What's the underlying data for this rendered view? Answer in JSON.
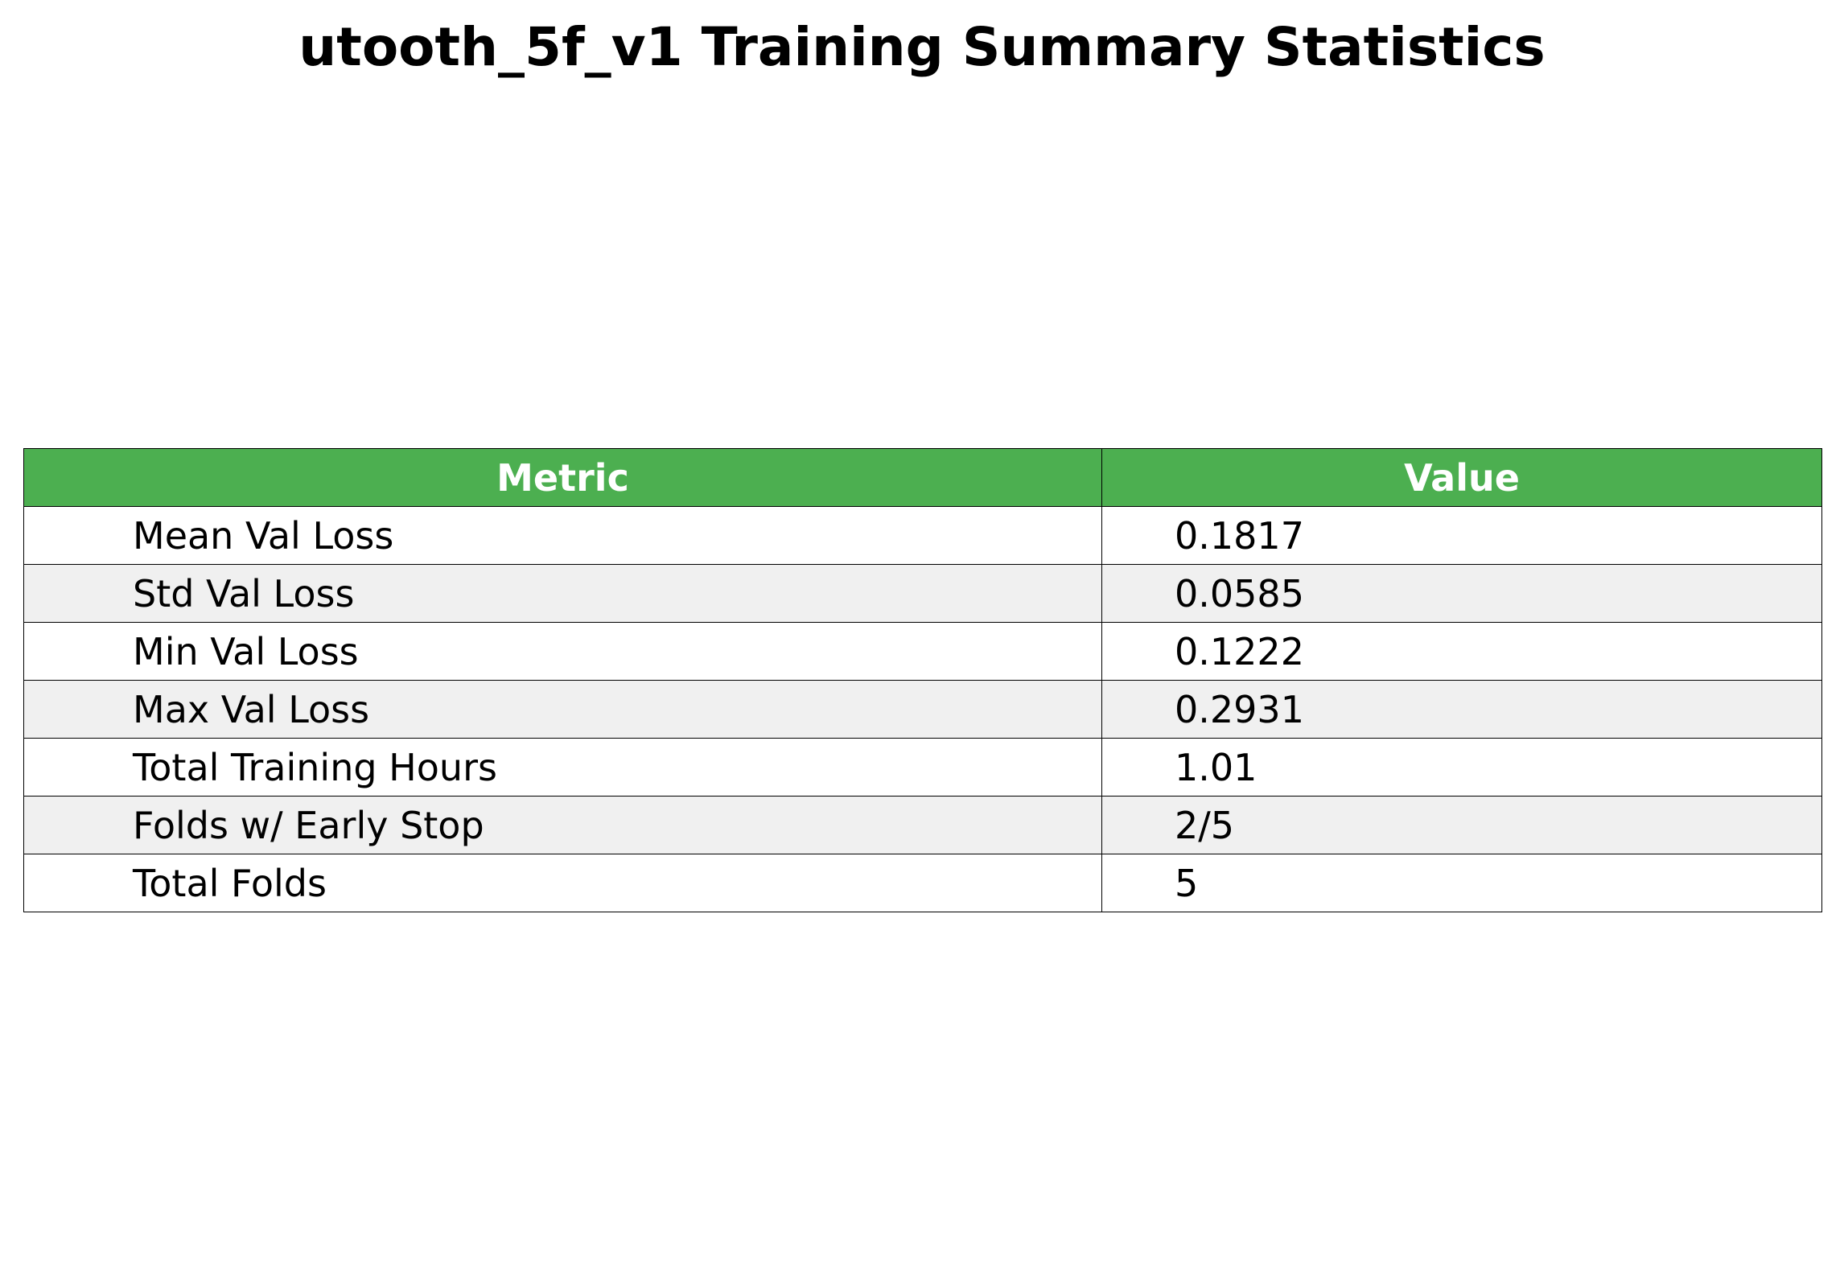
{
  "title": "utooth_5f_v1 Training Summary Statistics",
  "colors": {
    "header_bg": "#4caf50",
    "header_text": "#ffffff",
    "row_even_bg": "#ffffff",
    "row_odd_bg": "#f0f0f0",
    "border": "#000000"
  },
  "chart_data": {
    "type": "table",
    "title": "utooth_5f_v1 Training Summary Statistics",
    "columns": [
      "Metric",
      "Value"
    ],
    "rows": [
      [
        "Mean Val Loss",
        "0.1817"
      ],
      [
        "Std Val Loss",
        "0.0585"
      ],
      [
        "Min Val Loss",
        "0.1222"
      ],
      [
        "Max Val Loss",
        "0.2931"
      ],
      [
        "Total Training Hours",
        "1.01"
      ],
      [
        "Folds w/ Early Stop",
        "2/5"
      ],
      [
        "Total Folds",
        "5"
      ]
    ]
  }
}
